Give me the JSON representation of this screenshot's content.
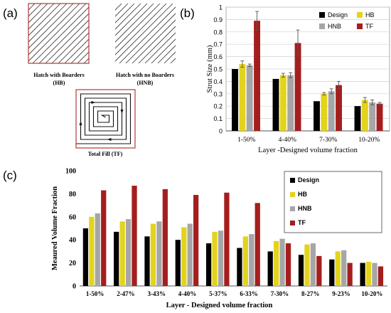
{
  "panels": {
    "a": {
      "label": "(a)",
      "hb_caption": [
        "Hatch with Boarders",
        "(HB)"
      ],
      "hnb_caption": [
        "Hatch with no Boarders",
        "(HNB)"
      ],
      "tf_caption": "Total Fill (TF)"
    },
    "b": {
      "label": "(b)"
    },
    "c": {
      "label": "(c)"
    }
  },
  "colors": {
    "Design": "#000000",
    "HB": "#e3d31c",
    "HNB": "#a6a6a6",
    "TF": "#a51e1e",
    "hatch_border": "#b23a3a"
  },
  "chart_data": [
    {
      "type": "bar",
      "panel": "b",
      "ylabel": "Strut Size (mm)",
      "xlabel": "Layer -Designed  volume fraction",
      "ylim": [
        0,
        1
      ],
      "yticks": [
        0,
        0.1,
        0.2,
        0.3,
        0.4,
        0.5,
        0.6,
        0.7,
        0.8,
        0.9,
        1
      ],
      "ytick_labels": [
        "0",
        "0.1",
        "0.2",
        "0.3",
        "0.4",
        "0.5",
        "0.6",
        "0.7",
        "0.8",
        "0.9",
        "1"
      ],
      "legend_position": "top-right",
      "categories": [
        "1-50%",
        "4-40%",
        "7-30%",
        "10-20%"
      ],
      "series": [
        {
          "name": "Design",
          "values": [
            0.5,
            0.42,
            0.24,
            0.2
          ],
          "errors": [
            0,
            0,
            0,
            0
          ]
        },
        {
          "name": "HB",
          "values": [
            0.54,
            0.45,
            0.3,
            0.25
          ],
          "errors": [
            0.025,
            0.015,
            0.01,
            0.02
          ]
        },
        {
          "name": "HNB",
          "values": [
            0.53,
            0.45,
            0.32,
            0.23
          ],
          "errors": [
            0.01,
            0.02,
            0.02,
            0.02
          ]
        },
        {
          "name": "TF",
          "values": [
            0.89,
            0.71,
            0.37,
            0.22
          ],
          "errors": [
            0.075,
            0.105,
            0.03,
            0.01
          ]
        }
      ]
    },
    {
      "type": "bar",
      "panel": "c",
      "ylabel": "Meaured Volume Fraction",
      "xlabel": "Layer - Designed volume fraction",
      "ylim": [
        0,
        100
      ],
      "yticks": [
        0,
        20,
        40,
        60,
        80,
        100
      ],
      "ytick_labels": [
        "0",
        "20",
        "40",
        "60",
        "80",
        "100"
      ],
      "legend_position": "top-right",
      "categories": [
        "1-50%",
        "2-47%",
        "3-43%",
        "4-40%",
        "5-37%",
        "6-33%",
        "7-30%",
        "8-27%",
        "9-23%",
        "10-20%"
      ],
      "series": [
        {
          "name": "Design",
          "values": [
            50,
            47,
            43,
            40,
            37,
            33,
            30,
            27,
            23,
            20
          ]
        },
        {
          "name": "HB",
          "values": [
            60,
            56,
            54,
            51,
            47,
            43,
            39,
            36,
            30,
            21
          ]
        },
        {
          "name": "HNB",
          "values": [
            63,
            58,
            56,
            54,
            48,
            45,
            41,
            37,
            31,
            20
          ]
        },
        {
          "name": "TF",
          "values": [
            83,
            87,
            84,
            79,
            81,
            72,
            37,
            26,
            20,
            17
          ]
        }
      ]
    }
  ]
}
